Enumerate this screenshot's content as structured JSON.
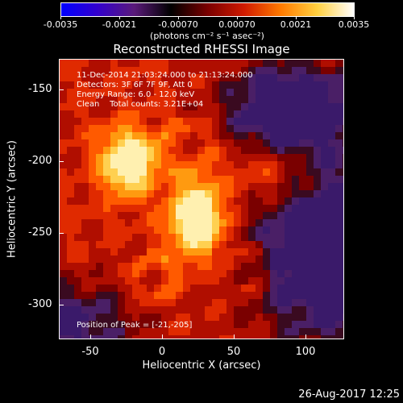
{
  "colorbar": {
    "tick_labels": [
      "-0.0035",
      "-0.0021",
      "-0.00070",
      "0.00070",
      "0.0021",
      "0.0035"
    ],
    "min": -0.0035,
    "max": 0.0035,
    "units_label": "(photons cm⁻² s⁻¹ asec⁻²)",
    "colors": [
      "#0000ff",
      "#3300cc",
      "#5a1a7a",
      "#000000",
      "#7a0000",
      "#d01a00",
      "#ff7a00",
      "#ffd040",
      "#ffffff"
    ]
  },
  "plot": {
    "title": "Reconstructed RHESSI Image",
    "xlabel": "Heliocentric X (arcsec)",
    "ylabel": "Heliocentric Y (arcsec)",
    "x_range": [
      -68,
      125
    ],
    "y_range": [
      -325,
      -132
    ],
    "x_ticks": [
      "-50",
      "0",
      "50",
      "100"
    ],
    "y_ticks": [
      "-150",
      "-200",
      "-250",
      "-300"
    ],
    "info_lines": [
      "11-Dec-2014 21:03:24.000 to 21:13:24.000",
      "Detectors: 3F 6F 7F 9F, Att 0",
      "Energy Range: 6.0 - 12.0 keV",
      "Clean    Total counts: 3.21E+04"
    ],
    "peak_text": "Position of Peak = [-21,-205]",
    "peak_position": [
      -21,
      -205
    ]
  },
  "footer": {
    "timestamp": "26-Aug-2017 12:25"
  }
}
